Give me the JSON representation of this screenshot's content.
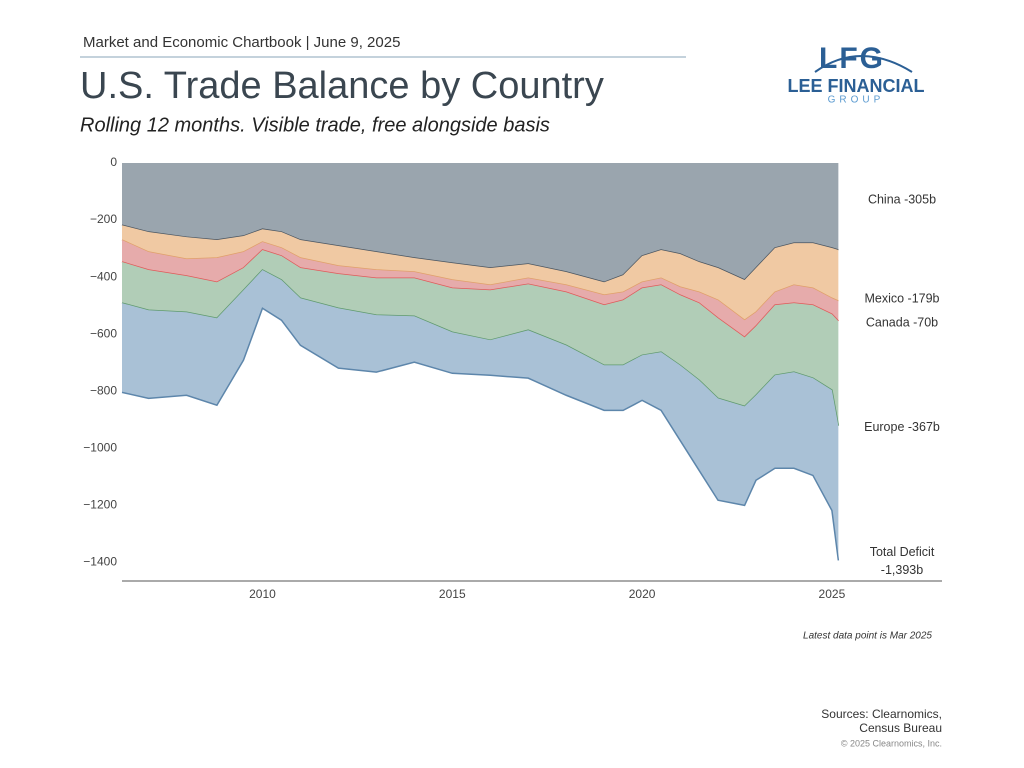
{
  "header": "Market and Economic Chartbook | June 9, 2025",
  "logo": {
    "mark": "LFG",
    "name": "LEE FINANCIAL",
    "group": "GROUP"
  },
  "chart_data": {
    "type": "stacked-area",
    "title": "U.S. Trade Balance by Country",
    "subtitle": "Rolling 12 months. Visible trade, free alongside basis",
    "x": [
      2006.3,
      2007,
      2008,
      2008.8,
      2009.5,
      2010,
      2010.5,
      2011,
      2012,
      2013,
      2014,
      2015,
      2016,
      2017,
      2018,
      2019,
      2019.5,
      2020,
      2020.5,
      2021,
      2021.5,
      2022,
      2022.7,
      2023,
      2023.5,
      2024,
      2024.5,
      2025,
      2025.17
    ],
    "series": [
      {
        "name": "China",
        "end_label": "China -305b",
        "color": "#9aa5ae",
        "line_color": "#4a5560",
        "values": [
          -218,
          -242,
          -260,
          -270,
          -256,
          -232,
          -242,
          -270,
          -291,
          -312,
          -333,
          -351,
          -368,
          -354,
          -382,
          -418,
          -393,
          -326,
          -305,
          -319,
          -347,
          -368,
          -410,
          -368,
          -298,
          -281,
          -281,
          -298,
          -305
        ]
      },
      {
        "name": "Mexico",
        "end_label": "Mexico -179b",
        "color": "#f0c9a3",
        "line_color": "#e0a06a",
        "values": [
          -52,
          -70,
          -77,
          -63,
          -56,
          -45,
          -56,
          -63,
          -70,
          -63,
          -49,
          -59,
          -60,
          -50,
          -46,
          -45,
          -60,
          -92,
          -99,
          -116,
          -106,
          -113,
          -141,
          -155,
          -155,
          -147,
          -158,
          -176,
          -179
        ]
      },
      {
        "name": "Canada",
        "end_label": "Canada -70b",
        "color": "#e6abab",
        "line_color": "#e05a5a",
        "values": [
          -77,
          -63,
          -59,
          -85,
          -56,
          -28,
          -28,
          -35,
          -28,
          -29,
          -22,
          -29,
          -18,
          -21,
          -25,
          -35,
          -28,
          -21,
          -24,
          -28,
          -38,
          -63,
          -60,
          -49,
          -45,
          -63,
          -59,
          -56,
          -70
        ]
      },
      {
        "name": "Europe",
        "end_label": "Europe -367b",
        "color": "#b1cdb7",
        "line_color": "#5f9a6e",
        "values": [
          -144,
          -141,
          -127,
          -126,
          -78,
          -70,
          -84,
          -106,
          -120,
          -129,
          -133,
          -154,
          -175,
          -161,
          -186,
          -211,
          -228,
          -235,
          -235,
          -246,
          -270,
          -281,
          -242,
          -242,
          -246,
          -242,
          -256,
          -266,
          -367
        ]
      }
    ],
    "total": {
      "name": "Total Deficit",
      "end_label": "-1,393b",
      "color": "#a9c1d6",
      "line_color": "#5d86ab",
      "values": [
        -804,
        -825,
        -814,
        -849,
        -691,
        -509,
        -551,
        -639,
        -719,
        -733,
        -698,
        -737,
        -744,
        -754,
        -814,
        -867,
        -867,
        -832,
        -867,
        -972,
        -1077,
        -1182,
        -1200,
        -1112,
        -1070,
        -1070,
        -1095,
        -1218,
        -1393
      ]
    },
    "xlim": [
      2006.3,
      2027.9
    ],
    "ylim": [
      -1465,
      0
    ],
    "xticks": [
      2010,
      2015,
      2020,
      2025
    ],
    "yticks": [
      0,
      {
        "value": -200,
        "label": "−200"
      },
      {
        "value": -400,
        "label": "−400"
      },
      {
        "value": -600,
        "label": "−600"
      },
      {
        "value": -800,
        "label": "−800"
      },
      {
        "value": -1000,
        "label": "−1000"
      },
      {
        "value": -1200,
        "label": "−1200"
      },
      {
        "value": -1400,
        "label": "−1400"
      }
    ],
    "grid": false,
    "note": "Latest data point is Mar 2025"
  },
  "footer": {
    "sources_1": "Sources: Clearnomics,",
    "sources_2": "Census Bureau",
    "copyright": "© 2025 Clearnomics, Inc."
  }
}
